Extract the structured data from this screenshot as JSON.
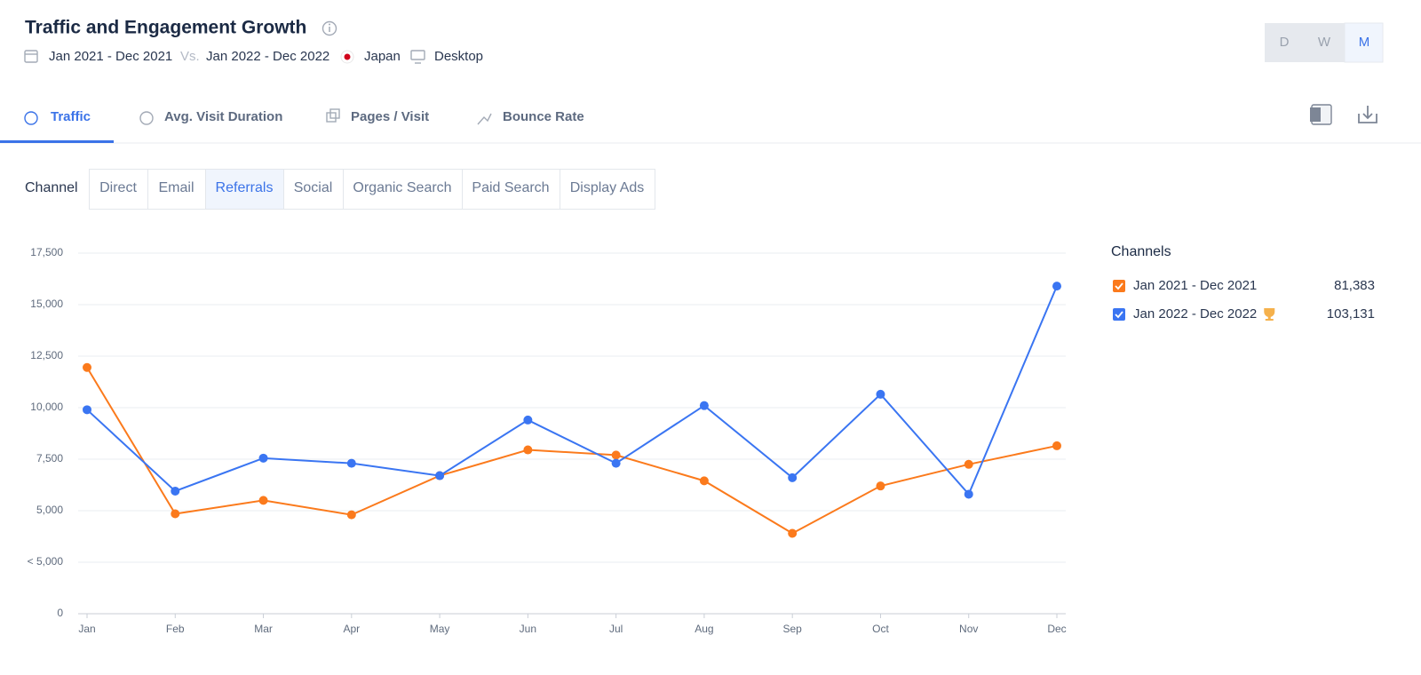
{
  "header": {
    "title": "Traffic and Engagement Growth",
    "period_a": "Jan 2021 - Dec 2021",
    "vs": "Vs.",
    "period_b": "Jan 2022 - Dec 2022",
    "country": "Japan",
    "device": "Desktop",
    "granularity": [
      "D",
      "W",
      "M"
    ]
  },
  "tabs": [
    "Traffic",
    "Avg. Visit Duration",
    "Pages / Visit",
    "Bounce Rate"
  ],
  "channel_filter": {
    "label": "Channel",
    "options": [
      "Direct",
      "Email",
      "Referrals",
      "Social",
      "Organic Search",
      "Paid Search",
      "Display Ads"
    ]
  },
  "chart_data": {
    "type": "line",
    "legend_title": "Channels",
    "categories": [
      "Jan",
      "Feb",
      "Mar",
      "Apr",
      "May",
      "Jun",
      "Jul",
      "Aug",
      "Sep",
      "Oct",
      "Nov",
      "Dec"
    ],
    "series": [
      {
        "name": "Jan 2021 - Dec 2021",
        "color": "#fb7a1c",
        "total": "81,383",
        "values": [
          11950,
          4850,
          5500,
          4800,
          6700,
          7950,
          7700,
          6450,
          3900,
          6200,
          7250,
          8150
        ]
      },
      {
        "name": "Jan 2022 - Dec 2022",
        "color": "#3a75f2",
        "total": "103,131",
        "values": [
          9900,
          5950,
          7550,
          7300,
          6700,
          9400,
          7300,
          10100,
          6600,
          10650,
          5800,
          15900
        ]
      }
    ],
    "ylim": [
      0,
      17500
    ],
    "yticks": [
      0,
      {
        "value": 2500,
        "label": "< 5,000"
      },
      {
        "value": 5000,
        "label": "5,000"
      },
      {
        "value": 7500,
        "label": "7,500"
      },
      {
        "value": 10000,
        "label": "10,000"
      },
      {
        "value": 12500,
        "label": "12,500"
      },
      {
        "value": 15000,
        "label": "15,000"
      },
      {
        "value": 17500,
        "label": "17,500"
      }
    ],
    "grid": true
  }
}
